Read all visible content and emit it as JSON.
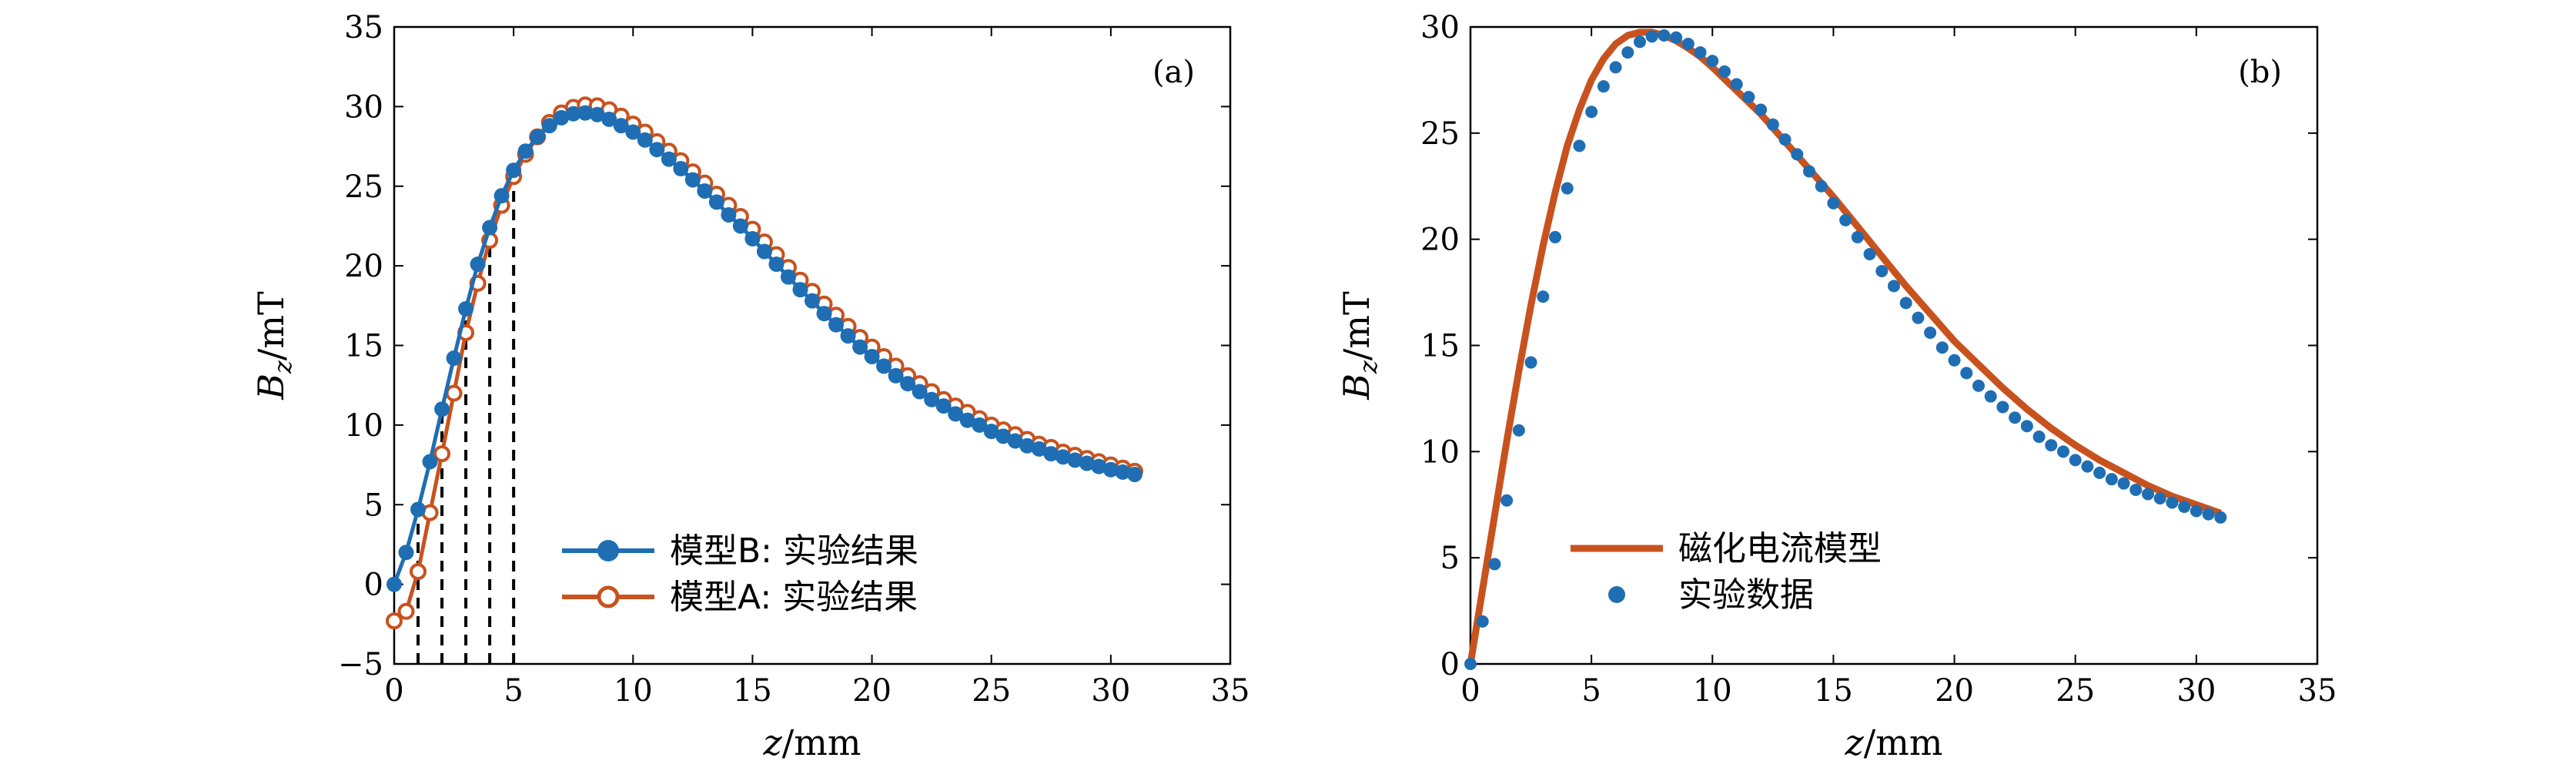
{
  "chart_data": [
    {
      "type": "line",
      "panel_label": "(a)",
      "xlabel_var": "z",
      "xlabel_unit": "/mm",
      "ylabel_var": "B",
      "ylabel_sub": "z",
      "ylabel_unit": "/mT",
      "xlim": [
        0,
        35
      ],
      "ylim": [
        -5,
        35
      ],
      "xticks": [
        "0",
        "5",
        "10",
        "15",
        "20",
        "25",
        "30",
        "35"
      ],
      "yticks": [
        "−5",
        "0",
        "5",
        "10",
        "15",
        "20",
        "25",
        "30",
        "35"
      ],
      "grid": false,
      "legend_position": "lower-center",
      "series": [
        {
          "name": "模型B: 实验结果",
          "color": "#1f6eb4",
          "marker": "filled-circle",
          "x": [
            0,
            0.5,
            1,
            1.5,
            2,
            2.5,
            3,
            3.5,
            4,
            4.5,
            5,
            5.5,
            6,
            6.5,
            7,
            7.5,
            8,
            8.5,
            9,
            9.5,
            10,
            10.5,
            11,
            11.5,
            12,
            12.5,
            13,
            13.5,
            14,
            14.5,
            15,
            15.5,
            16,
            16.5,
            17,
            17.5,
            18,
            18.5,
            19,
            19.5,
            20,
            20.5,
            21,
            21.5,
            22,
            22.5,
            23,
            23.5,
            24,
            24.5,
            25,
            25.5,
            26,
            26.5,
            27,
            27.5,
            28,
            28.5,
            29,
            29.5,
            30,
            30.5,
            31
          ],
          "y": [
            0,
            2,
            4.7,
            7.7,
            11,
            14.2,
            17.3,
            20.1,
            22.4,
            24.4,
            26,
            27.2,
            28.1,
            28.8,
            29.3,
            29.55,
            29.6,
            29.5,
            29.2,
            28.8,
            28.4,
            27.9,
            27.3,
            26.7,
            26.1,
            25.4,
            24.7,
            24,
            23.2,
            22.5,
            21.7,
            20.9,
            20.1,
            19.3,
            18.5,
            17.8,
            17,
            16.3,
            15.6,
            14.9,
            14.3,
            13.7,
            13.1,
            12.6,
            12.1,
            11.6,
            11.2,
            10.7,
            10.3,
            10,
            9.6,
            9.3,
            9,
            8.7,
            8.5,
            8.2,
            8,
            7.8,
            7.6,
            7.4,
            7.2,
            7.05,
            6.9
          ]
        },
        {
          "name": "模型A: 实验结果",
          "color": "#c8521e",
          "marker": "open-circle",
          "x": [
            0,
            0.5,
            1,
            1.5,
            2,
            2.5,
            3,
            3.5,
            4,
            4.5,
            5,
            5.5,
            6,
            6.5,
            7,
            7.5,
            8,
            8.5,
            9,
            9.5,
            10,
            10.5,
            11,
            11.5,
            12,
            12.5,
            13,
            13.5,
            14,
            14.5,
            15,
            15.5,
            16,
            16.5,
            17,
            17.5,
            18,
            18.5,
            19,
            19.5,
            20,
            20.5,
            21,
            21.5,
            22,
            22.5,
            23,
            23.5,
            24,
            24.5,
            25,
            25.5,
            26,
            26.5,
            27,
            27.5,
            28,
            28.5,
            29,
            29.5,
            30,
            30.5,
            31
          ],
          "y": [
            -2.3,
            -1.7,
            0.8,
            4.5,
            8.2,
            12,
            15.8,
            18.9,
            21.6,
            23.8,
            25.6,
            27,
            28.1,
            29,
            29.6,
            29.95,
            30.1,
            30.05,
            29.8,
            29.4,
            28.9,
            28.4,
            27.8,
            27.2,
            26.6,
            25.9,
            25.2,
            24.5,
            23.8,
            23.1,
            22.3,
            21.5,
            20.7,
            19.9,
            19.1,
            18.4,
            17.6,
            16.9,
            16.2,
            15.5,
            14.9,
            14.3,
            13.7,
            13.1,
            12.6,
            12.1,
            11.6,
            11.2,
            10.8,
            10.4,
            10,
            9.7,
            9.4,
            9.1,
            8.8,
            8.6,
            8.3,
            8.1,
            7.9,
            7.7,
            7.5,
            7.3,
            7.1
          ]
        }
      ],
      "vlines": {
        "style": "dashed",
        "color": "#000000",
        "x": [
          1,
          2,
          3,
          4,
          5
        ]
      }
    },
    {
      "type": "line",
      "panel_label": "(b)",
      "xlabel_var": "z",
      "xlabel_unit": "/mm",
      "ylabel_var": "B",
      "ylabel_sub": "z",
      "ylabel_unit": "/mT",
      "xlim": [
        0,
        35
      ],
      "ylim": [
        0,
        30
      ],
      "xticks": [
        "0",
        "5",
        "10",
        "15",
        "20",
        "25",
        "30",
        "35"
      ],
      "yticks": [
        "0",
        "5",
        "10",
        "15",
        "20",
        "25",
        "30"
      ],
      "grid": false,
      "legend_position": "lower-left",
      "series": [
        {
          "name": "磁化电流模型",
          "color": "#c8521e",
          "marker": "none",
          "x": [
            0,
            0.5,
            1,
            1.5,
            2,
            2.5,
            3,
            3.5,
            4,
            4.5,
            5,
            5.5,
            6,
            6.5,
            7,
            7.5,
            8,
            8.5,
            9,
            9.5,
            10,
            11,
            12,
            13,
            14,
            15,
            16,
            17,
            18,
            19,
            20,
            21,
            22,
            23,
            24,
            25,
            26,
            27,
            28,
            29,
            30,
            31
          ],
          "y": [
            0,
            3.5,
            7,
            10.5,
            13.8,
            16.9,
            19.7,
            22.2,
            24.4,
            26.1,
            27.5,
            28.5,
            29.2,
            29.6,
            29.75,
            29.75,
            29.6,
            29.35,
            29,
            28.6,
            28.1,
            27,
            25.9,
            24.6,
            23.3,
            22,
            20.6,
            19.2,
            17.8,
            16.5,
            15.2,
            14.1,
            13,
            12,
            11.1,
            10.3,
            9.6,
            9,
            8.4,
            7.9,
            7.5,
            7.1
          ]
        },
        {
          "name": "实验数据",
          "color": "#1f6eb4",
          "marker": "filled-circle",
          "x": [
            0,
            0.5,
            1,
            1.5,
            2,
            2.5,
            3,
            3.5,
            4,
            4.5,
            5,
            5.5,
            6,
            6.5,
            7,
            7.5,
            8,
            8.5,
            9,
            9.5,
            10,
            10.5,
            11,
            11.5,
            12,
            12.5,
            13,
            13.5,
            14,
            14.5,
            15,
            15.5,
            16,
            16.5,
            17,
            17.5,
            18,
            18.5,
            19,
            19.5,
            20,
            20.5,
            21,
            21.5,
            22,
            22.5,
            23,
            23.5,
            24,
            24.5,
            25,
            25.5,
            26,
            26.5,
            27,
            27.5,
            28,
            28.5,
            29,
            29.5,
            30,
            30.5,
            31
          ],
          "y": [
            0,
            2,
            4.7,
            7.7,
            11,
            14.2,
            17.3,
            20.1,
            22.4,
            24.4,
            26,
            27.2,
            28.1,
            28.8,
            29.3,
            29.55,
            29.6,
            29.5,
            29.2,
            28.8,
            28.4,
            27.9,
            27.3,
            26.7,
            26.1,
            25.4,
            24.7,
            24,
            23.2,
            22.5,
            21.7,
            20.9,
            20.1,
            19.3,
            18.5,
            17.8,
            17,
            16.3,
            15.6,
            14.9,
            14.3,
            13.7,
            13.1,
            12.6,
            12.1,
            11.6,
            11.2,
            10.7,
            10.3,
            10,
            9.6,
            9.3,
            9,
            8.7,
            8.5,
            8.2,
            8,
            7.8,
            7.6,
            7.4,
            7.2,
            7.05,
            6.9
          ]
        }
      ]
    }
  ]
}
